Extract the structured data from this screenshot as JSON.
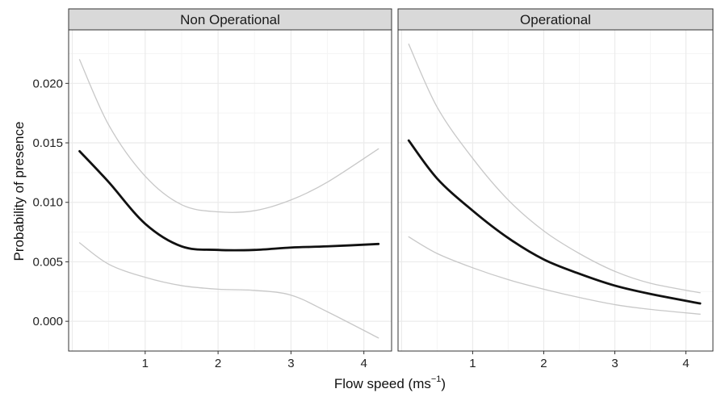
{
  "chart_data": {
    "type": "line",
    "ylabel": "Probability of presence",
    "xlabel": {
      "main": "Flow speed (ms",
      "superscript": "−1",
      "close": ")"
    },
    "xlim": [
      -0.05,
      4.38
    ],
    "ylim": [
      -0.0025,
      0.0245
    ],
    "xticks": [
      1,
      2,
      3,
      4
    ],
    "yticks": [
      {
        "value": 0.0,
        "label": "0.000"
      },
      {
        "value": 0.005,
        "label": "0.005"
      },
      {
        "value": 0.01,
        "label": "0.010"
      },
      {
        "value": 0.015,
        "label": "0.015"
      },
      {
        "value": 0.02,
        "label": "0.020"
      }
    ],
    "grid": true,
    "panels": [
      {
        "title": "Non Operational",
        "series": [
          {
            "role": "estimate",
            "color": "#111111",
            "x": [
              0.1,
              0.5,
              1.0,
              1.5,
              2.0,
              2.5,
              3.0,
              3.5,
              4.2
            ],
            "y": [
              0.0143,
              0.0117,
              0.0082,
              0.0063,
              0.006,
              0.006,
              0.0062,
              0.0063,
              0.0065
            ]
          },
          {
            "role": "upper",
            "color": "#c8c8c8",
            "x": [
              0.1,
              0.5,
              1.0,
              1.5,
              2.0,
              2.5,
              3.0,
              3.5,
              4.2
            ],
            "y": [
              0.022,
              0.0165,
              0.0122,
              0.0098,
              0.0092,
              0.0093,
              0.0102,
              0.0117,
              0.0145
            ]
          },
          {
            "role": "lower",
            "color": "#c8c8c8",
            "x": [
              0.1,
              0.5,
              1.0,
              1.5,
              2.0,
              2.5,
              3.0,
              3.5,
              4.2
            ],
            "y": [
              0.0066,
              0.0048,
              0.0037,
              0.003,
              0.0027,
              0.0026,
              0.0022,
              0.0008,
              -0.0014
            ]
          }
        ]
      },
      {
        "title": "Operational",
        "series": [
          {
            "role": "estimate",
            "color": "#111111",
            "x": [
              0.1,
              0.5,
              1.0,
              1.5,
              2.0,
              2.5,
              3.0,
              3.5,
              4.2
            ],
            "y": [
              0.0152,
              0.012,
              0.0093,
              0.007,
              0.0052,
              0.004,
              0.003,
              0.0023,
              0.0015
            ]
          },
          {
            "role": "upper",
            "color": "#c8c8c8",
            "x": [
              0.1,
              0.5,
              1.0,
              1.5,
              2.0,
              2.5,
              3.0,
              3.5,
              4.2
            ],
            "y": [
              0.0233,
              0.018,
              0.0137,
              0.0102,
              0.0076,
              0.0057,
              0.0042,
              0.0032,
              0.0024
            ]
          },
          {
            "role": "lower",
            "color": "#c8c8c8",
            "x": [
              0.1,
              0.5,
              1.0,
              1.5,
              2.0,
              2.5,
              3.0,
              3.5,
              4.2
            ],
            "y": [
              0.0071,
              0.0057,
              0.0045,
              0.0035,
              0.0027,
              0.002,
              0.0014,
              0.001,
              0.0006
            ]
          }
        ]
      }
    ],
    "colors": {
      "strip_bg": "#d9d9d9",
      "panel_border": "#333333",
      "grid_major": "#ebebeb",
      "grid_minor": "#f5f5f5"
    }
  }
}
